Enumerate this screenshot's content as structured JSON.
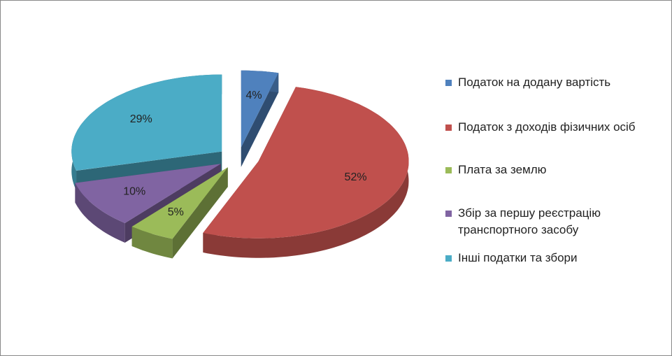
{
  "chart_data": {
    "type": "pie3d",
    "categories": [
      "Податок на додану вартість",
      "Податок з доходів фізичних осіб",
      "Плата за землю",
      "Збір за першу реєстрацію транспортного засобу",
      "Інші податки та збори"
    ],
    "values": [
      4,
      52,
      5,
      10,
      29
    ],
    "value_labels": [
      "4%",
      "52%",
      "5%",
      "10%",
      "29%"
    ],
    "colors": [
      "#4f81bd",
      "#c0504d",
      "#9bbb59",
      "#8064a2",
      "#4bacc6"
    ],
    "legend": "right"
  }
}
